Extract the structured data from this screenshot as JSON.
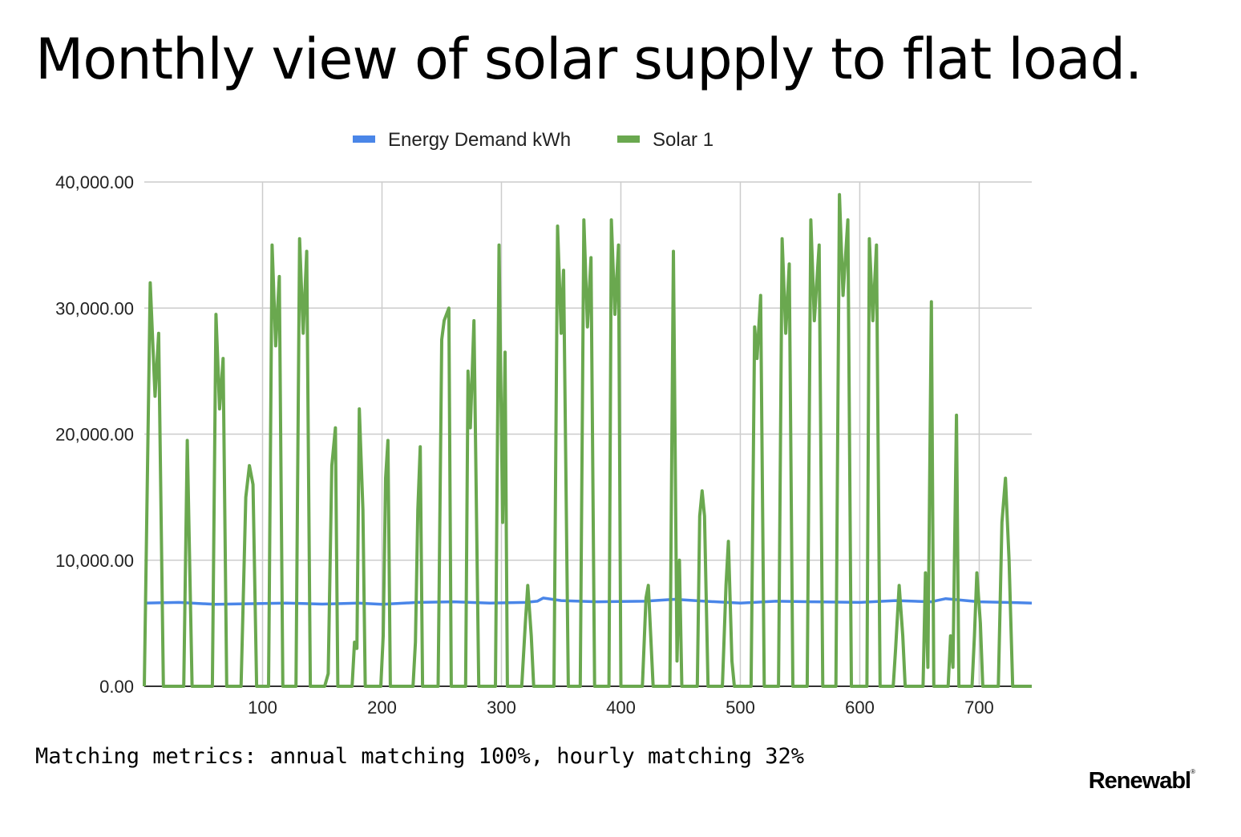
{
  "page": {
    "title": "Monthly view of solar supply to flat load.",
    "metrics": "Matching metrics: annual matching 100%, hourly matching 32%",
    "brand": "Renewabl",
    "brand_mark": "®"
  },
  "chart_data": {
    "type": "line",
    "x_range": [
      1,
      744
    ],
    "ylim": [
      0,
      40000
    ],
    "y_ticks": [
      "0.00",
      "10,000.00",
      "20,000.00",
      "30,000.00",
      "40,000.00"
    ],
    "y_tick_values": [
      0,
      10000,
      20000,
      30000,
      40000
    ],
    "x_ticks": [
      100,
      200,
      300,
      400,
      500,
      600,
      700
    ],
    "grid": true,
    "legend_position": "top",
    "series": [
      {
        "name": "Energy Demand kWh",
        "color": "#4a86e8",
        "points": [
          [
            1,
            6600
          ],
          [
            30,
            6650
          ],
          [
            60,
            6500
          ],
          [
            90,
            6550
          ],
          [
            120,
            6600
          ],
          [
            150,
            6520
          ],
          [
            180,
            6600
          ],
          [
            200,
            6500
          ],
          [
            230,
            6650
          ],
          [
            260,
            6700
          ],
          [
            290,
            6600
          ],
          [
            320,
            6650
          ],
          [
            330,
            6750
          ],
          [
            335,
            7000
          ],
          [
            350,
            6800
          ],
          [
            380,
            6700
          ],
          [
            420,
            6750
          ],
          [
            445,
            6900
          ],
          [
            470,
            6750
          ],
          [
            500,
            6600
          ],
          [
            530,
            6750
          ],
          [
            560,
            6700
          ],
          [
            600,
            6650
          ],
          [
            630,
            6800
          ],
          [
            660,
            6700
          ],
          [
            672,
            6950
          ],
          [
            700,
            6700
          ],
          [
            744,
            6600
          ]
        ]
      },
      {
        "name": "Solar 1",
        "color": "#6aa84f",
        "points": [
          [
            1,
            0
          ],
          [
            6,
            32000
          ],
          [
            10,
            23000
          ],
          [
            13,
            28000
          ],
          [
            17,
            0
          ],
          [
            34,
            0
          ],
          [
            37,
            19500
          ],
          [
            41,
            0
          ],
          [
            58,
            0
          ],
          [
            61,
            29500
          ],
          [
            64,
            22000
          ],
          [
            67,
            26000
          ],
          [
            70,
            0
          ],
          [
            82,
            0
          ],
          [
            86,
            15000
          ],
          [
            89,
            17500
          ],
          [
            92,
            16000
          ],
          [
            95,
            0
          ],
          [
            105,
            0
          ],
          [
            108,
            35000
          ],
          [
            111,
            27000
          ],
          [
            114,
            32500
          ],
          [
            117,
            0
          ],
          [
            128,
            0
          ],
          [
            131,
            35500
          ],
          [
            134,
            28000
          ],
          [
            137,
            34500
          ],
          [
            140,
            0
          ],
          [
            152,
            0
          ],
          [
            155,
            1000
          ],
          [
            158,
            17500
          ],
          [
            161,
            20500
          ],
          [
            163,
            0
          ],
          [
            175,
            0
          ],
          [
            177,
            3500
          ],
          [
            179,
            3000
          ],
          [
            181,
            22000
          ],
          [
            184,
            14000
          ],
          [
            186,
            0
          ],
          [
            199,
            0
          ],
          [
            201,
            4000
          ],
          [
            203,
            16500
          ],
          [
            205,
            19500
          ],
          [
            207,
            0
          ],
          [
            226,
            0
          ],
          [
            228,
            3500
          ],
          [
            230,
            14000
          ],
          [
            232,
            19000
          ],
          [
            234,
            0
          ],
          [
            247,
            0
          ],
          [
            250,
            27500
          ],
          [
            252,
            29000
          ],
          [
            256,
            30000
          ],
          [
            258,
            0
          ],
          [
            270,
            0
          ],
          [
            272,
            25000
          ],
          [
            274,
            20500
          ],
          [
            277,
            29000
          ],
          [
            281,
            0
          ],
          [
            295,
            0
          ],
          [
            298,
            35000
          ],
          [
            301,
            13000
          ],
          [
            303,
            26500
          ],
          [
            305,
            0
          ],
          [
            317,
            0
          ],
          [
            320,
            5000
          ],
          [
            322,
            8000
          ],
          [
            325,
            4000
          ],
          [
            327,
            0
          ],
          [
            344,
            0
          ],
          [
            347,
            36500
          ],
          [
            350,
            28000
          ],
          [
            352,
            33000
          ],
          [
            356,
            0
          ],
          [
            366,
            0
          ],
          [
            369,
            37000
          ],
          [
            372,
            28500
          ],
          [
            375,
            34000
          ],
          [
            378,
            0
          ],
          [
            390,
            0
          ],
          [
            392,
            37000
          ],
          [
            395,
            29500
          ],
          [
            398,
            35000
          ],
          [
            400,
            0
          ],
          [
            418,
            0
          ],
          [
            421,
            7000
          ],
          [
            423,
            8000
          ],
          [
            425,
            4000
          ],
          [
            427,
            0
          ],
          [
            441,
            0
          ],
          [
            444,
            34500
          ],
          [
            447,
            2000
          ],
          [
            449,
            10000
          ],
          [
            451,
            0
          ],
          [
            464,
            0
          ],
          [
            466,
            13500
          ],
          [
            468,
            15500
          ],
          [
            470,
            13500
          ],
          [
            473,
            0
          ],
          [
            485,
            0
          ],
          [
            488,
            8000
          ],
          [
            490,
            11500
          ],
          [
            493,
            2000
          ],
          [
            495,
            0
          ],
          [
            509,
            0
          ],
          [
            512,
            28500
          ],
          [
            514,
            26000
          ],
          [
            517,
            31000
          ],
          [
            520,
            0
          ],
          [
            532,
            0
          ],
          [
            535,
            35500
          ],
          [
            538,
            28000
          ],
          [
            541,
            33500
          ],
          [
            544,
            0
          ],
          [
            556,
            0
          ],
          [
            559,
            37000
          ],
          [
            562,
            29000
          ],
          [
            566,
            35000
          ],
          [
            569,
            0
          ],
          [
            580,
            0
          ],
          [
            583,
            39000
          ],
          [
            586,
            31000
          ],
          [
            590,
            37000
          ],
          [
            593,
            0
          ],
          [
            606,
            0
          ],
          [
            608,
            35500
          ],
          [
            611,
            29000
          ],
          [
            614,
            35000
          ],
          [
            617,
            0
          ],
          [
            628,
            0
          ],
          [
            630,
            3000
          ],
          [
            633,
            8000
          ],
          [
            636,
            4000
          ],
          [
            638,
            0
          ],
          [
            653,
            0
          ],
          [
            655,
            9000
          ],
          [
            657,
            1500
          ],
          [
            660,
            30500
          ],
          [
            662,
            0
          ],
          [
            674,
            0
          ],
          [
            676,
            4000
          ],
          [
            678,
            1500
          ],
          [
            681,
            21500
          ],
          [
            683,
            0
          ],
          [
            694,
            0
          ],
          [
            696,
            4000
          ],
          [
            698,
            9000
          ],
          [
            701,
            5000
          ],
          [
            703,
            0
          ],
          [
            716,
            0
          ],
          [
            719,
            13000
          ],
          [
            722,
            16500
          ],
          [
            725,
            10000
          ],
          [
            728,
            0
          ],
          [
            744,
            0
          ]
        ]
      }
    ]
  }
}
